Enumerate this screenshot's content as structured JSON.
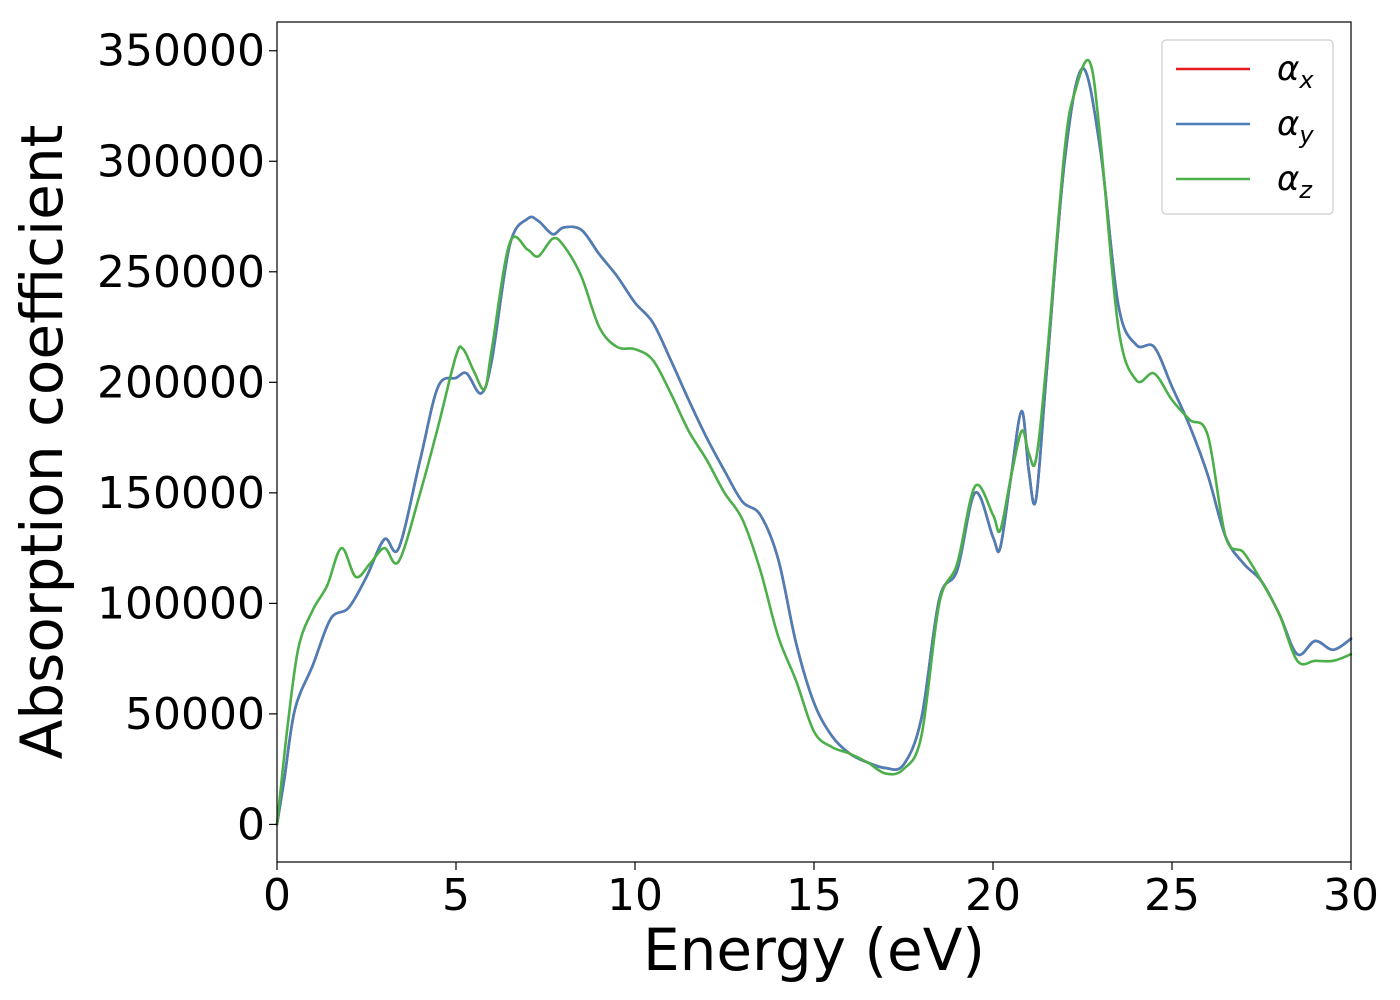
{
  "chart_data": {
    "type": "line",
    "xlabel": "Energy (eV)",
    "ylabel": "Absorption coefficient",
    "xlim": [
      0,
      30
    ],
    "ylim": [
      -17000,
      363000
    ],
    "xticks": [
      0,
      5,
      10,
      15,
      20,
      25,
      30
    ],
    "yticks": [
      0,
      50000,
      100000,
      150000,
      200000,
      250000,
      300000,
      350000
    ],
    "grid": false,
    "legend_position": "top-right",
    "series": [
      {
        "name": "αx",
        "label_base": "α",
        "label_sub": "x",
        "color": "#e41a1c",
        "x": [
          0,
          0.2,
          0.5,
          1.0,
          1.5,
          2.0,
          2.5,
          3.0,
          3.4,
          4.0,
          4.5,
          5.0,
          5.3,
          5.7,
          6.0,
          6.5,
          7.0,
          7.3,
          7.7,
          8.0,
          8.5,
          9.0,
          9.5,
          10.0,
          10.5,
          11.0,
          11.5,
          12.0,
          12.5,
          13.0,
          13.5,
          14.0,
          14.5,
          15.0,
          15.5,
          16.0,
          16.5,
          17.0,
          17.5,
          18.0,
          18.5,
          19.0,
          19.5,
          20.0,
          20.2,
          20.5,
          20.8,
          21.0,
          21.2,
          21.5,
          22.0,
          22.5,
          23.0,
          23.5,
          24.0,
          24.5,
          25.0,
          25.5,
          26.0,
          26.5,
          27.0,
          27.5,
          28.0,
          28.5,
          29.0,
          29.5,
          30.0
        ],
        "values": [
          0,
          20000,
          52000,
          72000,
          93000,
          98000,
          112000,
          129000,
          125000,
          165000,
          198000,
          202000,
          204000,
          195000,
          210000,
          262000,
          274000,
          273000,
          267000,
          270000,
          269000,
          258000,
          248000,
          236000,
          227000,
          210000,
          192000,
          175000,
          160000,
          146000,
          140000,
          120000,
          82000,
          55000,
          40000,
          32000,
          28000,
          25500,
          27000,
          48000,
          102000,
          115000,
          150000,
          130000,
          125000,
          157000,
          187000,
          160000,
          147000,
          205000,
          300000,
          342000,
          305000,
          235000,
          217000,
          216000,
          198000,
          180000,
          158000,
          130000,
          118000,
          110000,
          95000,
          77000,
          83000,
          79000,
          84000
        ]
      },
      {
        "name": "αy",
        "label_base": "α",
        "label_sub": "y",
        "color": "#4a7fb8",
        "x": [
          0,
          0.2,
          0.5,
          1.0,
          1.5,
          2.0,
          2.5,
          3.0,
          3.4,
          4.0,
          4.5,
          5.0,
          5.3,
          5.7,
          6.0,
          6.5,
          7.0,
          7.3,
          7.7,
          8.0,
          8.5,
          9.0,
          9.5,
          10.0,
          10.5,
          11.0,
          11.5,
          12.0,
          12.5,
          13.0,
          13.5,
          14.0,
          14.5,
          15.0,
          15.5,
          16.0,
          16.5,
          17.0,
          17.5,
          18.0,
          18.5,
          19.0,
          19.5,
          20.0,
          20.2,
          20.5,
          20.8,
          21.0,
          21.2,
          21.5,
          22.0,
          22.5,
          23.0,
          23.5,
          24.0,
          24.5,
          25.0,
          25.5,
          26.0,
          26.5,
          27.0,
          27.5,
          28.0,
          28.5,
          29.0,
          29.5,
          30.0
        ],
        "values": [
          0,
          20000,
          52000,
          72000,
          93000,
          98000,
          112000,
          129000,
          125000,
          165000,
          198000,
          202000,
          204000,
          195000,
          210000,
          262000,
          274000,
          273000,
          267000,
          270000,
          269000,
          258000,
          248000,
          236000,
          227000,
          210000,
          192000,
          175000,
          160000,
          146000,
          140000,
          120000,
          82000,
          55000,
          40000,
          32000,
          28000,
          25500,
          27000,
          48000,
          102000,
          115000,
          150000,
          130000,
          125000,
          157000,
          187000,
          160000,
          147000,
          205000,
          300000,
          342000,
          305000,
          235000,
          217000,
          216000,
          198000,
          180000,
          158000,
          130000,
          118000,
          110000,
          95000,
          77000,
          83000,
          79000,
          84000
        ]
      },
      {
        "name": "αz",
        "label_base": "α",
        "label_sub": "z",
        "color": "#4daf4a",
        "x": [
          0,
          0.3,
          0.6,
          1.0,
          1.4,
          1.8,
          2.2,
          2.6,
          3.0,
          3.4,
          4.0,
          4.5,
          5.0,
          5.2,
          5.5,
          5.8,
          6.0,
          6.5,
          7.0,
          7.3,
          7.7,
          8.0,
          8.5,
          9.0,
          9.5,
          10.0,
          10.5,
          11.0,
          11.5,
          12.0,
          12.5,
          13.0,
          13.5,
          14.0,
          14.5,
          15.0,
          15.5,
          16.0,
          16.5,
          17.0,
          17.5,
          18.0,
          18.5,
          19.0,
          19.5,
          20.0,
          20.2,
          20.5,
          20.8,
          21.0,
          21.2,
          21.5,
          22.0,
          22.3,
          22.7,
          23.0,
          23.5,
          24.0,
          24.5,
          25.0,
          25.5,
          26.0,
          26.5,
          27.0,
          27.5,
          28.0,
          28.5,
          29.0,
          29.5,
          30.0
        ],
        "values": [
          0,
          45000,
          80000,
          97000,
          108000,
          125000,
          112000,
          118000,
          125000,
          119000,
          150000,
          180000,
          212000,
          215000,
          205000,
          197000,
          215000,
          263000,
          260000,
          257000,
          265000,
          262000,
          248000,
          225000,
          216000,
          215000,
          210000,
          195000,
          178000,
          165000,
          150000,
          138000,
          115000,
          85000,
          65000,
          42000,
          35000,
          32000,
          28000,
          23000,
          25000,
          40000,
          100000,
          118000,
          153000,
          140000,
          133000,
          157000,
          178000,
          168000,
          165000,
          210000,
          305000,
          332000,
          345000,
          310000,
          225000,
          201000,
          204000,
          192000,
          183000,
          176000,
          130000,
          123000,
          110000,
          95000,
          74000,
          74000,
          74000,
          77000
        ]
      }
    ]
  }
}
